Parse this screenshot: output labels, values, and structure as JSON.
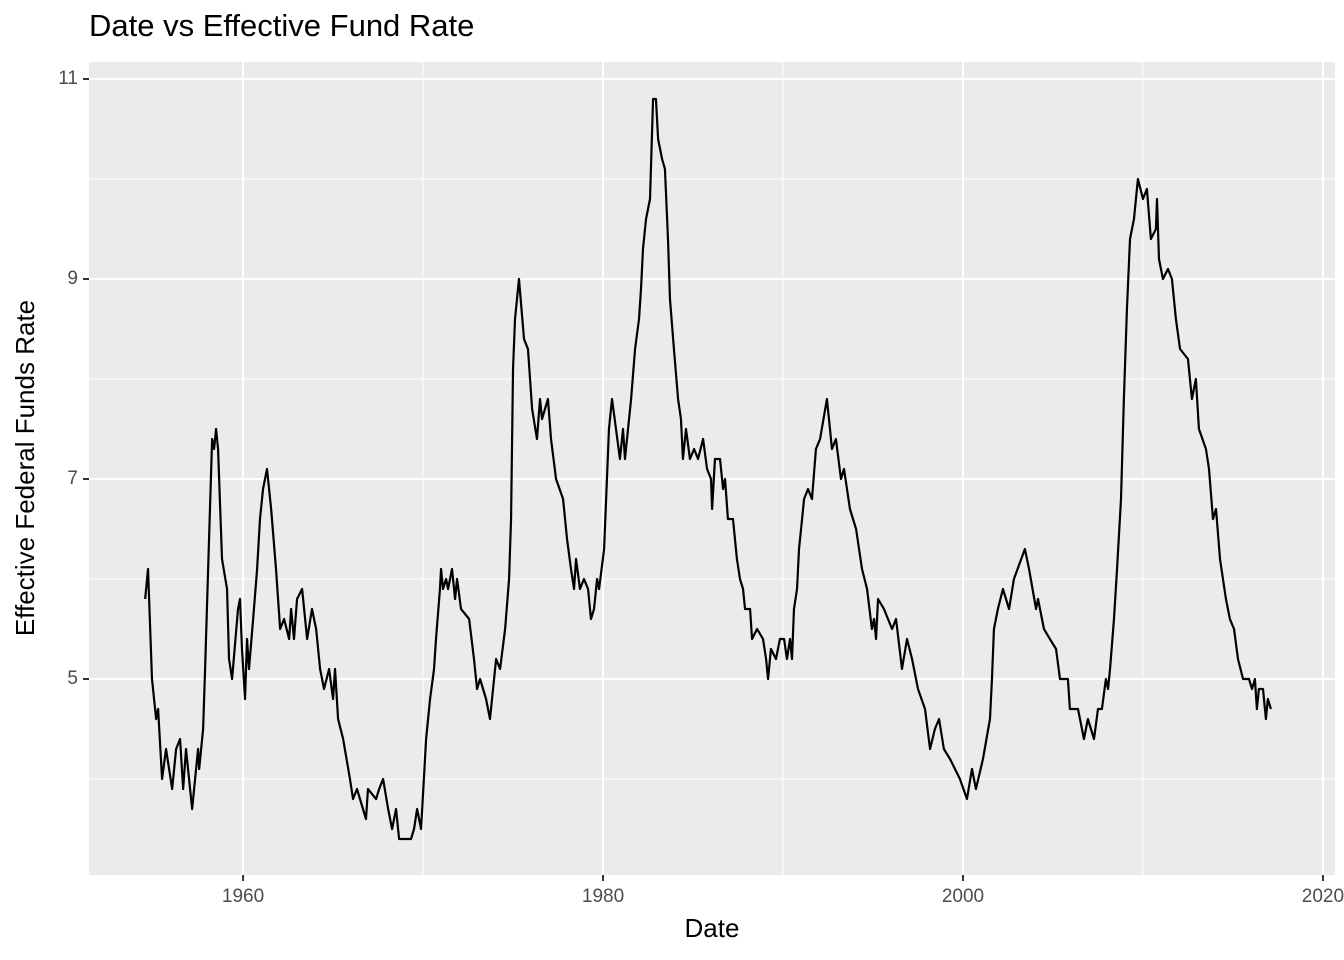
{
  "chart_data": {
    "type": "line",
    "title": "Date vs Effective Fund Rate",
    "x_label": "Date",
    "y_label": "Effective Federal Funds Rate",
    "grid": true,
    "xlim": [
      1951.44,
      2020.67
    ],
    "ylim": [
      3.04,
      11.17
    ],
    "xticks": [
      1960,
      1980,
      2000,
      2020
    ],
    "yticks": [
      5,
      7,
      9,
      11
    ],
    "x": [
      1954.56,
      1954.72,
      1954.94,
      1955.17,
      1955.28,
      1955.5,
      1955.72,
      1956.06,
      1956.28,
      1956.5,
      1956.67,
      1956.83,
      1957.17,
      1957.5,
      1957.56,
      1957.78,
      1957.89,
      1958.11,
      1958.28,
      1958.39,
      1958.5,
      1958.61,
      1958.83,
      1959.11,
      1959.22,
      1959.39,
      1959.72,
      1959.83,
      1959.94,
      1960.11,
      1960.22,
      1960.33,
      1960.56,
      1960.78,
      1960.94,
      1961.11,
      1961.33,
      1961.56,
      1961.83,
      1962.06,
      1962.28,
      1962.56,
      1962.67,
      1962.83,
      1963,
      1963.28,
      1963.56,
      1963.83,
      1964.06,
      1964.28,
      1964.5,
      1964.78,
      1965,
      1965.11,
      1965.28,
      1965.56,
      1965.94,
      1966.11,
      1966.33,
      1966.83,
      1966.94,
      1967.39,
      1967.56,
      1967.78,
      1968.06,
      1968.28,
      1968.5,
      1968.67,
      1969.33,
      1969.5,
      1969.67,
      1969.89,
      1970.17,
      1970.39,
      1970.61,
      1970.72,
      1970.94,
      1971,
      1971.11,
      1971.28,
      1971.39,
      1971.61,
      1971.78,
      1971.89,
      1972.11,
      1972.56,
      1972.83,
      1973,
      1973.17,
      1973.5,
      1973.72,
      1974.06,
      1974.28,
      1974.56,
      1974.78,
      1974.89,
      1975,
      1975.11,
      1975.33,
      1975.61,
      1975.83,
      1976.06,
      1976.33,
      1976.5,
      1976.61,
      1976.94,
      1977.11,
      1977.39,
      1977.78,
      1978,
      1978.22,
      1978.39,
      1978.5,
      1978.72,
      1978.94,
      1979.17,
      1979.33,
      1979.5,
      1979.67,
      1979.78,
      1980.06,
      1980.33,
      1980.5,
      1980.72,
      1980.94,
      1981.11,
      1981.22,
      1981.39,
      1981.56,
      1981.78,
      1982,
      1982.11,
      1982.22,
      1982.39,
      1982.61,
      1982.78,
      1982.94,
      1983.06,
      1983.28,
      1983.44,
      1983.61,
      1983.72,
      1983.94,
      1984.17,
      1984.33,
      1984.44,
      1984.61,
      1984.83,
      1985.06,
      1985.28,
      1985.56,
      1985.78,
      1986,
      1986.06,
      1986.22,
      1986.5,
      1986.67,
      1986.78,
      1986.94,
      1987.22,
      1987.44,
      1987.61,
      1987.78,
      1987.89,
      1988.17,
      1988.28,
      1988.56,
      1988.89,
      1989.06,
      1989.17,
      1989.33,
      1989.61,
      1989.83,
      1990.06,
      1990.22,
      1990.39,
      1990.5,
      1990.61,
      1990.78,
      1990.89,
      1991.06,
      1991.17,
      1991.39,
      1991.61,
      1991.83,
      1992.06,
      1992.44,
      1992.61,
      1992.72,
      1992.94,
      1993.22,
      1993.39,
      1993.72,
      1994.06,
      1994.39,
      1994.67,
      1994.94,
      1995.06,
      1995.17,
      1995.28,
      1995.61,
      1996.06,
      1996.28,
      1996.61,
      1996.89,
      1997.17,
      1997.5,
      1997.89,
      1998.17,
      1998.44,
      1998.67,
      1998.94,
      1999.28,
      1999.83,
      2000.22,
      2000.5,
      2000.72,
      2001.11,
      2001.5,
      2001.61,
      2001.72,
      2001.94,
      2002.22,
      2002.56,
      2002.83,
      2003.44,
      2003.67,
      2004.06,
      2004.17,
      2004.5,
      2004.83,
      2005.17,
      2005.39,
      2005.83,
      2005.94,
      2006.39,
      2006.72,
      2006.94,
      2007.28,
      2007.5,
      2007.72,
      2007.94,
      2008.06,
      2008.17,
      2008.39,
      2008.56,
      2008.78,
      2008.94,
      2009.11,
      2009.28,
      2009.5,
      2009.72,
      2010,
      2010.22,
      2010.44,
      2010.72,
      2010.78,
      2010.89,
      2011.11,
      2011.39,
      2011.61,
      2011.83,
      2012.06,
      2012.5,
      2012.72,
      2012.94,
      2013.11,
      2013.5,
      2013.67,
      2013.89,
      2014.06,
      2014.28,
      2014.61,
      2014.83,
      2015.06,
      2015.28,
      2015.56,
      2015.89,
      2016.06,
      2016.22,
      2016.33,
      2016.44,
      2016.67,
      2016.83,
      2016.94,
      2017.11
    ],
    "series": [
      {
        "color": "#000000",
        "values": [
          5.8,
          6.1,
          5.0,
          4.6,
          4.7,
          4.0,
          4.3,
          3.9,
          4.3,
          4.4,
          3.9,
          4.3,
          3.7,
          4.3,
          4.1,
          4.5,
          5.1,
          6.4,
          7.4,
          7.3,
          7.5,
          7.3,
          6.2,
          5.9,
          5.2,
          5.0,
          5.7,
          5.8,
          5.3,
          4.8,
          5.4,
          5.1,
          5.6,
          6.1,
          6.6,
          6.9,
          7.1,
          6.7,
          6.1,
          5.5,
          5.6,
          5.4,
          5.7,
          5.4,
          5.8,
          5.9,
          5.4,
          5.7,
          5.5,
          5.1,
          4.9,
          5.1,
          4.8,
          5.1,
          4.6,
          4.4,
          4.0,
          3.8,
          3.9,
          3.6,
          3.9,
          3.8,
          3.9,
          4.0,
          3.7,
          3.5,
          3.7,
          3.4,
          3.4,
          3.5,
          3.7,
          3.5,
          4.4,
          4.8,
          5.1,
          5.4,
          5.9,
          6.1,
          5.9,
          6.0,
          5.9,
          6.1,
          5.8,
          6.0,
          5.7,
          5.6,
          5.2,
          4.9,
          5.0,
          4.8,
          4.6,
          5.2,
          5.1,
          5.5,
          6.0,
          6.6,
          8.1,
          8.6,
          9.0,
          8.4,
          8.3,
          7.7,
          7.4,
          7.8,
          7.6,
          7.8,
          7.4,
          7.0,
          6.8,
          6.4,
          6.1,
          5.9,
          6.2,
          5.9,
          6.0,
          5.9,
          5.6,
          5.7,
          6.0,
          5.9,
          6.3,
          7.5,
          7.8,
          7.5,
          7.2,
          7.5,
          7.2,
          7.5,
          7.8,
          8.3,
          8.6,
          8.9,
          9.3,
          9.6,
          9.8,
          10.8,
          10.8,
          10.4,
          10.2,
          10.1,
          9.4,
          8.8,
          8.3,
          7.8,
          7.6,
          7.2,
          7.5,
          7.2,
          7.3,
          7.2,
          7.4,
          7.1,
          7.0,
          6.7,
          7.2,
          7.2,
          6.9,
          7.0,
          6.6,
          6.6,
          6.2,
          6.0,
          5.9,
          5.7,
          5.7,
          5.4,
          5.5,
          5.4,
          5.2,
          5.0,
          5.3,
          5.2,
          5.4,
          5.4,
          5.2,
          5.4,
          5.2,
          5.7,
          5.9,
          6.3,
          6.6,
          6.8,
          6.9,
          6.8,
          7.3,
          7.4,
          7.8,
          7.5,
          7.3,
          7.4,
          7.0,
          7.1,
          6.7,
          6.5,
          6.1,
          5.9,
          5.5,
          5.6,
          5.4,
          5.8,
          5.7,
          5.5,
          5.6,
          5.1,
          5.4,
          5.2,
          4.9,
          4.7,
          4.3,
          4.5,
          4.6,
          4.3,
          4.2,
          4.0,
          3.8,
          4.1,
          3.9,
          4.2,
          4.6,
          5.0,
          5.5,
          5.7,
          5.9,
          5.7,
          6.0,
          6.3,
          6.1,
          5.7,
          5.8,
          5.5,
          5.4,
          5.3,
          5.0,
          5.0,
          4.7,
          4.7,
          4.4,
          4.6,
          4.4,
          4.7,
          4.7,
          5.0,
          4.9,
          5.1,
          5.6,
          6.1,
          6.8,
          7.8,
          8.7,
          9.4,
          9.6,
          10.0,
          9.8,
          9.9,
          9.4,
          9.5,
          9.8,
          9.2,
          9.0,
          9.1,
          9.0,
          8.6,
          8.3,
          8.2,
          7.8,
          8.0,
          7.5,
          7.3,
          7.1,
          6.6,
          6.7,
          6.2,
          5.8,
          5.6,
          5.5,
          5.2,
          5.0,
          5.0,
          4.9,
          5.0,
          4.7,
          4.9,
          4.9,
          4.6,
          4.8,
          4.7
        ]
      }
    ]
  }
}
